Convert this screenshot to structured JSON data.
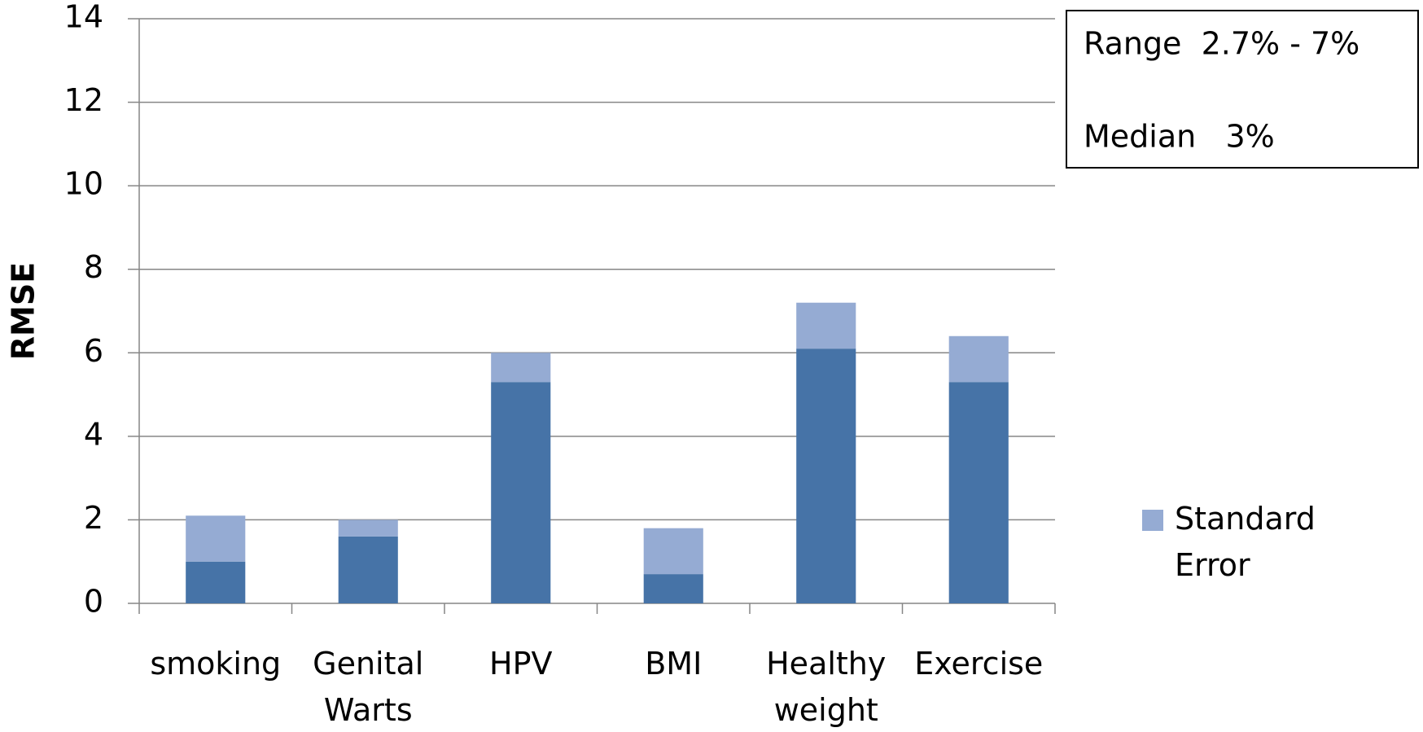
{
  "chart_data": {
    "type": "stacked_bar",
    "y_label": "RMSE",
    "categories": [
      "smoking",
      "Genital Warts",
      "HPV",
      "BMI",
      "Healthy weight",
      "Exercise"
    ],
    "series": [
      {
        "color": "#4673a7",
        "values": [
          1.0,
          1.6,
          5.3,
          0.7,
          6.1,
          5.3
        ]
      },
      {
        "name": "Standard Error",
        "color": "#95abd3",
        "values": [
          1.1,
          0.4,
          0.7,
          1.1,
          1.1,
          1.1
        ]
      }
    ],
    "ylim": [
      0,
      14
    ],
    "yticks": [
      0,
      2,
      4,
      6,
      8,
      10,
      12,
      14
    ],
    "grid": true,
    "legend": "right",
    "annotations": [
      "Range  2.7% - 7%",
      "Median   3%"
    ]
  }
}
